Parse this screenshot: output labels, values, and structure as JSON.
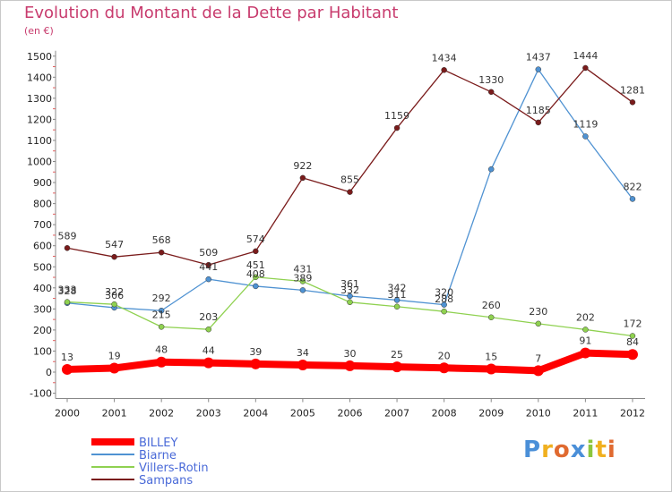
{
  "title": "Evolution du Montant de la Dette par Habitant",
  "unit": "(en €)",
  "brand": "Proxiti",
  "chart_data": {
    "type": "line",
    "title": "Evolution du Montant de la Dette par Habitant",
    "ylabel": "(en €)",
    "xlabel": "",
    "x": [
      "2000",
      "2001",
      "2002",
      "2003",
      "2004",
      "2005",
      "2006",
      "2007",
      "2008",
      "2009",
      "2010",
      "2011",
      "2012"
    ],
    "ylim": [
      -100,
      1500
    ],
    "yticks": [
      -100,
      0,
      100,
      200,
      300,
      400,
      500,
      600,
      700,
      800,
      900,
      1000,
      1100,
      1200,
      1300,
      1400,
      1500
    ],
    "grid": false,
    "legend_position": "bottom-left",
    "series": [
      {
        "name": "BILLEY",
        "color": "#ff0000",
        "emphasis": true,
        "values": [
          13,
          19,
          48,
          44,
          39,
          34,
          30,
          25,
          20,
          15,
          7,
          91,
          84
        ]
      },
      {
        "name": "Biarne",
        "color": "#4f92d2",
        "values": [
          328,
          306,
          292,
          441,
          408,
          389,
          361,
          342,
          320,
          963,
          1437,
          1119,
          822
        ]
      },
      {
        "name": "Villers-Rotin",
        "color": "#8fd150",
        "values": [
          333,
          322,
          215,
          203,
          451,
          431,
          332,
          311,
          288,
          260,
          230,
          202,
          172
        ]
      },
      {
        "name": "Sampans",
        "color": "#7a1b1b",
        "values": [
          589,
          547,
          568,
          509,
          574,
          922,
          855,
          1159,
          1434,
          1330,
          1185,
          1444,
          1281
        ]
      }
    ],
    "labeled_points": {
      "BILLEY": [
        0,
        1,
        2,
        3,
        4,
        5,
        6,
        7,
        8,
        9,
        10,
        11,
        12
      ],
      "Biarne": [
        0,
        1,
        2,
        3,
        4,
        5,
        6,
        7,
        8,
        10,
        11,
        12
      ],
      "Villers-Rotin": [
        0,
        1,
        2,
        3,
        4,
        5,
        6,
        7,
        8,
        9,
        10,
        11,
        12
      ],
      "Sampans": [
        0,
        1,
        2,
        3,
        4,
        5,
        6,
        7,
        8,
        9,
        10,
        11,
        12
      ]
    }
  }
}
